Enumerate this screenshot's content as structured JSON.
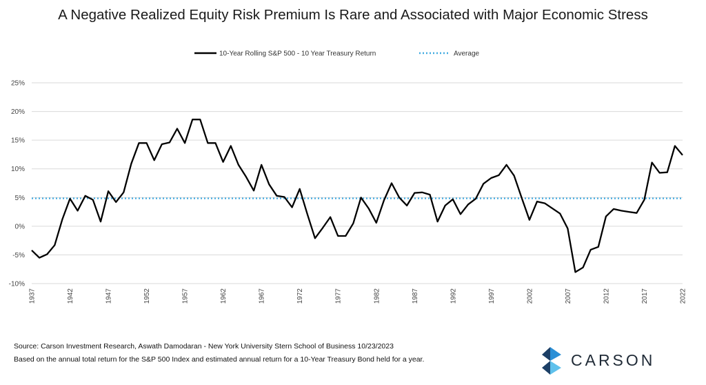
{
  "chart_data": {
    "type": "line",
    "title": "A Negative Realized Equity Risk Premium Is Rare and Associated with Major Economic Stress",
    "xlabel": "",
    "ylabel": "",
    "ylim": [
      -10,
      25
    ],
    "yticks": [
      "25%",
      "20%",
      "15%",
      "10%",
      "5%",
      "0%",
      "-5%",
      "-10%"
    ],
    "ytick_values": [
      25,
      20,
      15,
      10,
      5,
      0,
      -5,
      -10
    ],
    "xtick_labels": [
      "1937",
      "1942",
      "1947",
      "1952",
      "1957",
      "1962",
      "1967",
      "1972",
      "1977",
      "1982",
      "1987",
      "1992",
      "1997",
      "2002",
      "2007",
      "2012",
      "2017",
      "2022"
    ],
    "grid": "horizontal",
    "legend_position": "top-center",
    "x": [
      1937,
      1938,
      1939,
      1940,
      1941,
      1942,
      1943,
      1944,
      1945,
      1946,
      1947,
      1948,
      1949,
      1950,
      1951,
      1952,
      1953,
      1954,
      1955,
      1956,
      1957,
      1958,
      1959,
      1960,
      1961,
      1962,
      1963,
      1964,
      1965,
      1966,
      1967,
      1968,
      1969,
      1970,
      1971,
      1972,
      1973,
      1974,
      1975,
      1976,
      1977,
      1978,
      1979,
      1980,
      1981,
      1982,
      1983,
      1984,
      1985,
      1986,
      1987,
      1988,
      1989,
      1990,
      1991,
      1992,
      1993,
      1994,
      1995,
      1996,
      1997,
      1998,
      1999,
      2000,
      2001,
      2002,
      2003,
      2004,
      2005,
      2006,
      2007,
      2008,
      2009,
      2010,
      2011,
      2012,
      2013,
      2014,
      2015,
      2016,
      2017,
      2018,
      2019,
      2020,
      2021,
      2022
    ],
    "series": [
      {
        "name": "10-Year Rolling S&P 500 - 10 Year Treasury Return",
        "color": "#000000",
        "style": "solid",
        "values": [
          -4.2,
          -5.5,
          -4.9,
          -3.3,
          1.2,
          4.8,
          2.7,
          5.3,
          4.6,
          0.8,
          6.1,
          4.2,
          5.9,
          10.9,
          14.5,
          14.5,
          11.5,
          14.3,
          14.6,
          17.0,
          14.5,
          18.6,
          18.6,
          14.5,
          14.5,
          11.2,
          14.0,
          10.7,
          8.6,
          6.2,
          10.7,
          7.3,
          5.3,
          5.1,
          3.3,
          6.5,
          2.1,
          -2.1,
          -0.3,
          1.6,
          -1.7,
          -1.7,
          0.5,
          5.0,
          3.1,
          0.6,
          4.5,
          7.5,
          5.0,
          3.6,
          5.8,
          5.9,
          5.5,
          0.8,
          3.6,
          4.7,
          2.1,
          3.8,
          4.8,
          7.4,
          8.4,
          8.9,
          10.7,
          8.8,
          4.9,
          1.1,
          4.3,
          4.0,
          3.1,
          2.2,
          -0.4,
          -8.0,
          -7.2,
          -4.1,
          -3.6,
          1.7,
          3.0,
          2.7,
          2.5,
          2.3,
          4.6,
          11.1,
          9.3,
          9.4,
          14.0,
          12.4
        ]
      },
      {
        "name": "Average",
        "color": "#3fa9e0",
        "style": "dotted",
        "value": 4.85
      }
    ]
  },
  "footer": {
    "source": "Source: Carson Investment Research, Aswath Damodaran - New York University Stern School of Business 10/23/2023",
    "note": "Based on the annual total return for the S&P 500 Index and estimated annual return for a 10-Year Treasury Bond held for a year."
  },
  "brand": {
    "name": "CARSON",
    "accent_colors": [
      "#2b8fd6",
      "#1c3f66",
      "#5fc1ec"
    ]
  }
}
